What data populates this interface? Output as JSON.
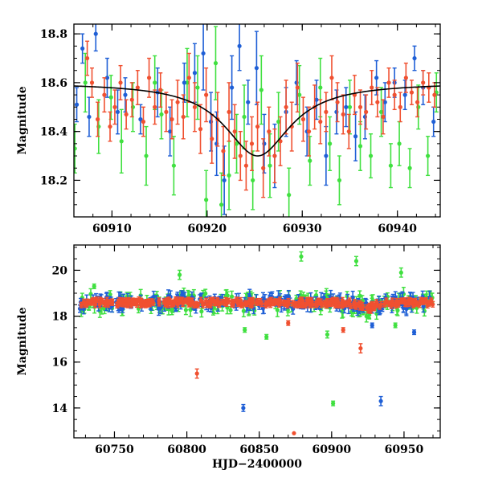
{
  "chart_data": [
    {
      "type": "scatter",
      "title": "",
      "xlabel": "",
      "ylabel": "Magnitude",
      "xlim": [
        60906,
        60944.5
      ],
      "ylim": [
        18.84,
        18.05
      ],
      "y_inverted": true,
      "x_ticks": [
        60910,
        60920,
        60930,
        60940
      ],
      "x_tick_labels": [
        "60910",
        "60920",
        "60930",
        "60940"
      ],
      "y_ticks": [
        18.2,
        18.4,
        18.6,
        18.8
      ],
      "y_tick_labels": [
        "18.2",
        "18.4",
        "18.6",
        "18.8"
      ],
      "series": [
        {
          "name": "blue",
          "color": "#1f5fd6",
          "x": [
            60906.3,
            60906.9,
            60907.6,
            60908.3,
            60909.5,
            60910.6,
            60911.4,
            60913.0,
            60914.8,
            60916.1,
            60917.6,
            60918.7,
            60919.6,
            60920.4,
            60921.0,
            60921.8,
            60922.6,
            60923.4,
            60924.3,
            60925.2,
            60926.0,
            60927.1,
            60928.3,
            60929.4,
            60930.5,
            60931.5,
            60932.5,
            60933.6,
            60934.6,
            60935.6,
            60936.6,
            60937.8,
            60938.7,
            60939.7,
            60940.8,
            60941.8,
            60942.7,
            60943.8
          ],
          "y": [
            18.51,
            18.74,
            18.46,
            18.8,
            18.62,
            18.48,
            18.55,
            18.45,
            18.56,
            18.4,
            18.6,
            18.64,
            18.72,
            18.44,
            18.35,
            18.2,
            18.58,
            18.75,
            18.52,
            18.66,
            18.35,
            18.3,
            18.48,
            18.6,
            18.4,
            18.53,
            18.3,
            18.48,
            18.5,
            18.38,
            18.46,
            18.62,
            18.52,
            18.6,
            18.55,
            18.7,
            18.58,
            18.44
          ],
          "err": [
            0.07,
            0.06,
            0.08,
            0.07,
            0.08,
            0.09,
            0.07,
            0.06,
            0.1,
            0.1,
            0.08,
            0.12,
            0.15,
            0.12,
            0.13,
            0.14,
            0.13,
            0.1,
            0.09,
            0.15,
            0.12,
            0.13,
            0.1,
            0.09,
            0.1,
            0.08,
            0.12,
            0.09,
            0.08,
            0.1,
            0.09,
            0.07,
            0.08,
            0.06,
            0.06,
            0.05,
            0.07,
            0.06
          ]
        },
        {
          "name": "green",
          "color": "#40e040",
          "x": [
            60906.1,
            60907.2,
            60908.6,
            60909.9,
            60911.0,
            60912.2,
            60913.6,
            60914.5,
            60915.2,
            60916.5,
            60917.9,
            60919.0,
            60919.9,
            60920.9,
            60921.5,
            60922.3,
            60923.1,
            60923.9,
            60924.8,
            60925.7,
            60926.6,
            60927.5,
            60928.6,
            60929.7,
            60930.8,
            60931.9,
            60932.9,
            60933.9,
            60935.0,
            60936.1,
            60937.2,
            60938.3,
            60939.3,
            60940.2,
            60941.3,
            60942.2,
            60943.2,
            60944.1
          ],
          "y": [
            18.33,
            18.6,
            18.42,
            18.54,
            18.36,
            18.5,
            18.3,
            18.6,
            18.47,
            18.26,
            18.6,
            18.58,
            18.12,
            18.68,
            18.1,
            18.22,
            18.35,
            18.46,
            18.2,
            18.57,
            18.26,
            18.44,
            18.14,
            18.55,
            18.28,
            18.58,
            18.35,
            18.2,
            18.5,
            18.34,
            18.3,
            18.48,
            18.26,
            18.35,
            18.25,
            18.5,
            18.3,
            18.56
          ],
          "err": [
            0.1,
            0.12,
            0.11,
            0.09,
            0.13,
            0.1,
            0.12,
            0.11,
            0.1,
            0.12,
            0.14,
            0.13,
            0.12,
            0.15,
            0.13,
            0.14,
            0.12,
            0.13,
            0.12,
            0.14,
            0.13,
            0.12,
            0.11,
            0.12,
            0.1,
            0.12,
            0.11,
            0.1,
            0.11,
            0.1,
            0.09,
            0.1,
            0.09,
            0.09,
            0.08,
            0.09,
            0.08,
            0.08
          ]
        },
        {
          "name": "red",
          "color": "#f05030",
          "x": [
            60907.4,
            60907.9,
            60908.5,
            60909.2,
            60909.8,
            60910.3,
            60910.9,
            60911.5,
            60912.1,
            60912.7,
            60913.3,
            60913.9,
            60914.5,
            60915.1,
            60915.7,
            60916.3,
            60916.9,
            60917.5,
            60918.1,
            60918.7,
            60919.3,
            60919.9,
            60920.5,
            60921.1,
            60921.7,
            60922.3,
            60922.9,
            60923.5,
            60924.1,
            60924.7,
            60925.3,
            60925.9,
            60926.5,
            60927.1,
            60927.7,
            60928.3,
            60928.9,
            60929.5,
            60930.1,
            60930.7,
            60931.3,
            60931.9,
            60932.5,
            60933.1,
            60933.7,
            60934.3,
            60934.9,
            60935.5,
            60936.1,
            60936.7,
            60937.3,
            60937.9,
            60938.5,
            60939.1,
            60939.7,
            60940.3,
            60940.9,
            60941.5,
            60942.1,
            60942.7,
            60943.3,
            60943.9
          ],
          "y": [
            18.7,
            18.6,
            18.45,
            18.55,
            18.42,
            18.5,
            18.6,
            18.47,
            18.53,
            18.58,
            18.44,
            18.62,
            18.5,
            18.57,
            18.48,
            18.45,
            18.52,
            18.46,
            18.62,
            18.5,
            18.41,
            18.55,
            18.37,
            18.45,
            18.32,
            18.48,
            18.4,
            18.3,
            18.26,
            18.35,
            18.42,
            18.25,
            18.4,
            18.3,
            18.36,
            18.5,
            18.42,
            18.58,
            18.45,
            18.4,
            18.5,
            18.44,
            18.48,
            18.62,
            18.52,
            18.47,
            18.4,
            18.55,
            18.5,
            18.48,
            18.58,
            18.52,
            18.46,
            18.6,
            18.55,
            18.5,
            18.62,
            18.56,
            18.52,
            18.6,
            18.58,
            18.55
          ],
          "err": [
            0.07,
            0.06,
            0.07,
            0.07,
            0.06,
            0.07,
            0.07,
            0.06,
            0.07,
            0.07,
            0.06,
            0.08,
            0.07,
            0.07,
            0.08,
            0.08,
            0.09,
            0.09,
            0.1,
            0.1,
            0.1,
            0.11,
            0.1,
            0.11,
            0.1,
            0.12,
            0.11,
            0.1,
            0.1,
            0.11,
            0.1,
            0.12,
            0.1,
            0.11,
            0.1,
            0.11,
            0.1,
            0.1,
            0.09,
            0.1,
            0.09,
            0.09,
            0.08,
            0.09,
            0.08,
            0.08,
            0.07,
            0.08,
            0.07,
            0.07,
            0.07,
            0.06,
            0.07,
            0.06,
            0.06,
            0.06,
            0.06,
            0.05,
            0.06,
            0.05,
            0.06,
            0.05
          ]
        }
      ],
      "model_curve": {
        "name": "fit",
        "color": "#000000",
        "baseline_mag": 18.6,
        "peak_mag": 18.3,
        "t0": 60925.3,
        "width_days": 4.2
      }
    },
    {
      "type": "scatter",
      "title": "",
      "xlabel": "HJD−2400000",
      "ylabel": "Magnitude",
      "xlim": [
        60722,
        60975
      ],
      "ylim": [
        21.1,
        12.7
      ],
      "y_inverted": true,
      "x_ticks": [
        60750,
        60800,
        60850,
        60900,
        60950
      ],
      "x_tick_labels": [
        "60750",
        "60800",
        "60850",
        "60900",
        "60950"
      ],
      "y_ticks": [
        14,
        16,
        18,
        20
      ],
      "y_tick_labels": [
        "14",
        "16",
        "18",
        "20"
      ],
      "baseline": {
        "x_range": [
          60726,
          60970
        ],
        "mag": 18.6,
        "bump_t0": 60925,
        "bump_mag": 18.3
      },
      "outliers": [
        {
          "series": "red",
          "x": 60874,
          "y": 12.9,
          "err": 0.0
        },
        {
          "series": "red",
          "x": 60807,
          "y": 15.5,
          "err": 0.2
        },
        {
          "series": "blue",
          "x": 60839,
          "y": 14.0,
          "err": 0.15
        },
        {
          "series": "blue",
          "x": 60934,
          "y": 14.3,
          "err": 0.2
        },
        {
          "series": "green",
          "x": 60901,
          "y": 14.2,
          "err": 0.1
        },
        {
          "series": "green",
          "x": 60879,
          "y": 20.6,
          "err": 0.2
        },
        {
          "series": "green",
          "x": 60917,
          "y": 20.4,
          "err": 0.2
        },
        {
          "series": "green",
          "x": 60948,
          "y": 19.9,
          "err": 0.2
        },
        {
          "series": "green",
          "x": 60736,
          "y": 19.3,
          "err": 0.1
        },
        {
          "series": "green",
          "x": 60795,
          "y": 19.8,
          "err": 0.2
        },
        {
          "series": "green",
          "x": 60840,
          "y": 17.4,
          "err": 0.1
        },
        {
          "series": "green",
          "x": 60855,
          "y": 17.1,
          "err": 0.1
        },
        {
          "series": "green",
          "x": 60897,
          "y": 17.2,
          "err": 0.15
        },
        {
          "series": "green",
          "x": 60944,
          "y": 17.6,
          "err": 0.1
        },
        {
          "series": "red",
          "x": 60920,
          "y": 16.6,
          "err": 0.2
        },
        {
          "series": "red",
          "x": 60908,
          "y": 17.4,
          "err": 0.1
        },
        {
          "series": "blue",
          "x": 60957,
          "y": 17.3,
          "err": 0.1
        },
        {
          "series": "blue",
          "x": 60928,
          "y": 17.6,
          "err": 0.1
        },
        {
          "series": "red",
          "x": 60870,
          "y": 17.7,
          "err": 0.1
        }
      ]
    }
  ],
  "colors": {
    "blue": "#1f5fd6",
    "green": "#40e040",
    "red": "#f05030",
    "curve": "#000000",
    "axis": "#000000"
  }
}
